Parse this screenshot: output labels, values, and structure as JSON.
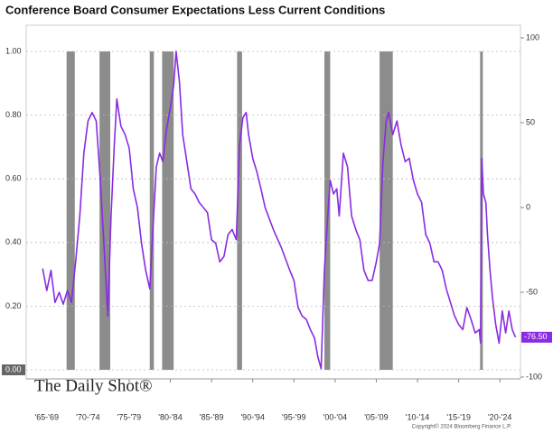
{
  "chart_data": {
    "type": "line",
    "title": "Conference Board Consumer Expectations Less Current Conditions",
    "watermark": "The Daily Shot®",
    "copyright": "Copyright© 2024 Bloomberg Finance L.P.",
    "xlim": [
      1965,
      2025
    ],
    "xticks": [
      {
        "value": 1967.5,
        "label": "'65-'69"
      },
      {
        "value": 1972.5,
        "label": "'70-'74"
      },
      {
        "value": 1977.5,
        "label": "'75-'79"
      },
      {
        "value": 1982.5,
        "label": "'80-'84"
      },
      {
        "value": 1987.5,
        "label": "'85-'89"
      },
      {
        "value": 1992.5,
        "label": "'90-'94"
      },
      {
        "value": 1997.5,
        "label": "'95-'99"
      },
      {
        "value": 2002.5,
        "label": "'00-'04"
      },
      {
        "value": 2007.5,
        "label": "'05-'09"
      },
      {
        "value": 2012.5,
        "label": "'10-'14"
      },
      {
        "value": 2017.5,
        "label": "'15-'19"
      },
      {
        "value": 2022.5,
        "label": "'20-'24"
      }
    ],
    "ylim": [
      0,
      1
    ],
    "yticks": [
      {
        "value": 0,
        "label": "0.00"
      },
      {
        "value": 0.2,
        "label": "0.20"
      },
      {
        "value": 0.4,
        "label": "0.40"
      },
      {
        "value": 0.6,
        "label": "0.60"
      },
      {
        "value": 0.8,
        "label": "0.80"
      },
      {
        "value": 1,
        "label": "1.00"
      }
    ],
    "y2lim": [
      -100,
      100
    ],
    "y2ticks": [
      100,
      50,
      0,
      -50,
      -100
    ],
    "grid": true,
    "recessions": {
      "color": "#8c8c8c",
      "start": [
        1969.9,
        1973.9,
        1980.0,
        1981.5,
        1990.6,
        2001.2,
        2007.9,
        2020.1
      ],
      "end": [
        1970.9,
        1975.2,
        1980.5,
        1982.9,
        1991.2,
        2001.9,
        2009.5,
        2020.3
      ],
      "values": [
        1,
        1,
        1,
        1,
        1,
        1,
        1,
        1
      ]
    },
    "series": [
      {
        "color": "#8a2be2",
        "axis": "y2",
        "x": [
          1967.0,
          1967.5,
          1968.0,
          1968.5,
          1969.0,
          1969.5,
          1970.0,
          1970.5,
          1971.0,
          1971.5,
          1972.0,
          1972.5,
          1973.0,
          1973.5,
          1974.0,
          1974.5,
          1974.9,
          1975.3,
          1975.7,
          1976.0,
          1976.5,
          1977.0,
          1977.5,
          1978.0,
          1978.5,
          1979.0,
          1979.5,
          1980.0,
          1980.4,
          1980.8,
          1981.2,
          1981.6,
          1982.0,
          1982.5,
          1982.9,
          1983.2,
          1983.6,
          1984.0,
          1984.5,
          1985.0,
          1985.5,
          1986.0,
          1986.5,
          1987.0,
          1987.5,
          1988.0,
          1988.5,
          1989.0,
          1989.5,
          1990.0,
          1990.5,
          1990.9,
          1991.3,
          1991.7,
          1992.0,
          1992.5,
          1993.0,
          1993.5,
          1994.0,
          1995.0,
          1996.0,
          1997.0,
          1997.5,
          1998.0,
          1998.5,
          1999.0,
          1999.5,
          2000.0,
          2000.4,
          2000.8,
          2001.2,
          2001.6,
          2001.9,
          2002.3,
          2002.7,
          2003.0,
          2003.5,
          2004.0,
          2004.5,
          2005.0,
          2005.5,
          2006.0,
          2006.5,
          2007.0,
          2007.5,
          2007.9,
          2008.3,
          2008.7,
          2009.0,
          2009.5,
          2010.0,
          2010.5,
          2011.0,
          2011.5,
          2012.0,
          2012.5,
          2013.0,
          2013.5,
          2014.0,
          2014.5,
          2015.0,
          2015.5,
          2016.0,
          2016.5,
          2017.0,
          2017.5,
          2018.0,
          2018.5,
          2019.0,
          2019.5,
          2020.0,
          2020.15,
          2020.3,
          2020.5,
          2020.8,
          2021.0,
          2021.3,
          2021.6,
          2022.0,
          2022.4,
          2022.8,
          2023.2,
          2023.6,
          2024.0,
          2024.4
        ],
        "values": [
          -36,
          -49,
          -37,
          -56,
          -50,
          -57,
          -49,
          -56,
          -32,
          -5,
          32,
          51,
          56,
          51,
          16,
          -27,
          -64,
          -5,
          37,
          64,
          48,
          43,
          35,
          11,
          0,
          -21,
          -37,
          -48,
          -11,
          24,
          32,
          27,
          45,
          59,
          72,
          92,
          74,
          43,
          27,
          11,
          8,
          3,
          0,
          -3,
          -19,
          -21,
          -32,
          -29,
          -16,
          -13,
          -19,
          37,
          53,
          56,
          43,
          29,
          21,
          11,
          0,
          -13,
          -24,
          -37,
          -43,
          -59,
          -64,
          -66,
          -72,
          -77,
          -88,
          -95,
          -37,
          -5,
          16,
          8,
          11,
          -5,
          32,
          24,
          -5,
          -13,
          -19,
          -37,
          -43,
          -43,
          -32,
          -21,
          27,
          51,
          56,
          43,
          51,
          37,
          27,
          29,
          16,
          8,
          3,
          -16,
          -21,
          -32,
          -32,
          -37,
          -48,
          -56,
          -64,
          -69,
          -72,
          -59,
          -66,
          -74,
          -72,
          -80,
          29,
          8,
          3,
          -16,
          -37,
          -53,
          -69,
          -80,
          -61,
          -74,
          -61,
          -72,
          -76.5
        ],
        "end_label": {
          "value": -76.5,
          "label": "-76.50"
        }
      }
    ]
  }
}
